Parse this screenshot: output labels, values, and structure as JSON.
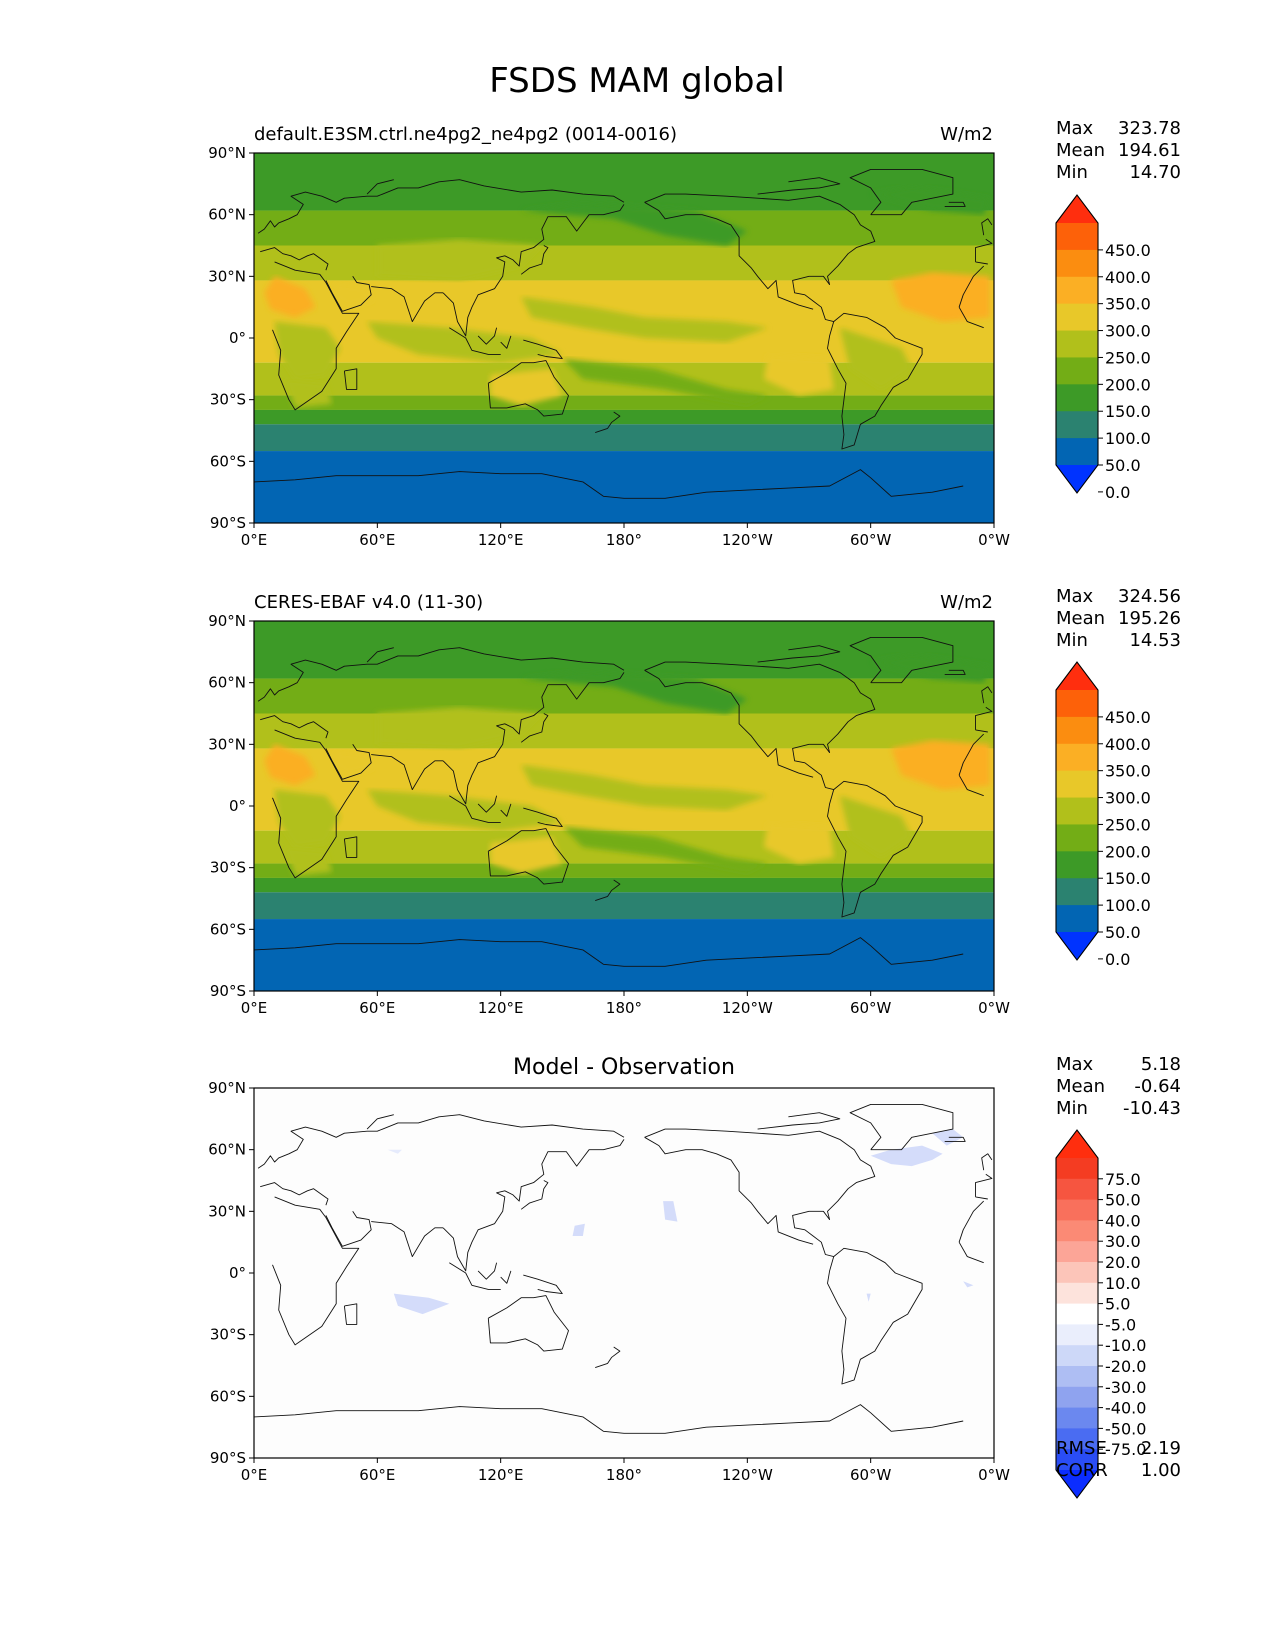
{
  "title": "FSDS MAM global",
  "x_ticks": [
    "0°E",
    "60°E",
    "120°E",
    "180°",
    "120°W",
    "60°W",
    "0°W"
  ],
  "y_ticks": [
    "90°N",
    "60°N",
    "30°N",
    "0°",
    "30°S",
    "60°S",
    "90°S"
  ],
  "abs_colorbar": {
    "colors": [
      "#0033ff",
      "#0265b3",
      "#2b8270",
      "#3d9a27",
      "#73ad16",
      "#b1c01b",
      "#e8c829",
      "#fbaf24",
      "#fb8d10",
      "#fd6109",
      "#ff2e0e"
    ],
    "labels": [
      "450.0",
      "400.0",
      "350.0",
      "300.0",
      "250.0",
      "200.0",
      "150.0",
      "100.0",
      "50.0",
      "0.0"
    ]
  },
  "diff_colorbar": {
    "colors": [
      "#0b2dff",
      "#2a4df5",
      "#4a6cf2",
      "#6b88ef",
      "#8fa3ef",
      "#aebef3",
      "#cdd8f8",
      "#eaeefc",
      "#ffffff",
      "#fde3dc",
      "#fcc5b9",
      "#fca597",
      "#fb8a75",
      "#f9705c",
      "#f65540",
      "#f43c22",
      "#ff2e0e"
    ],
    "labels": [
      "75.0",
      "50.0",
      "40.0",
      "30.0",
      "20.0",
      "10.0",
      "5.0",
      "-5.0",
      "-10.0",
      "-20.0",
      "-30.0",
      "-40.0",
      "-50.0",
      "-75.0"
    ]
  },
  "panels": [
    {
      "id": "model",
      "left_title": "default.E3SM.ctrl.ne4pg2_ne4pg2 (0014-0016)",
      "units": "W/m2",
      "stats": {
        "max_label": "Max",
        "max": "323.78",
        "mean_label": "Mean",
        "mean": "194.61",
        "min_label": "Min",
        "min": "14.70"
      }
    },
    {
      "id": "obs",
      "left_title": "CERES-EBAF v4.0 (11-30)",
      "units": "W/m2",
      "stats": {
        "max_label": "Max",
        "max": "324.56",
        "mean_label": "Mean",
        "mean": "195.26",
        "min_label": "Min",
        "min": "14.53"
      }
    },
    {
      "id": "diff",
      "center_title": "Model - Observation",
      "stats": {
        "max_label": "Max",
        "max": "5.18",
        "mean_label": "Mean",
        "mean": "-0.64",
        "min_label": "Min",
        "min": "-10.43"
      },
      "rmse_label": "RMSE",
      "rmse": "2.19",
      "corr_label": "CORR",
      "corr": "1.00"
    }
  ]
}
